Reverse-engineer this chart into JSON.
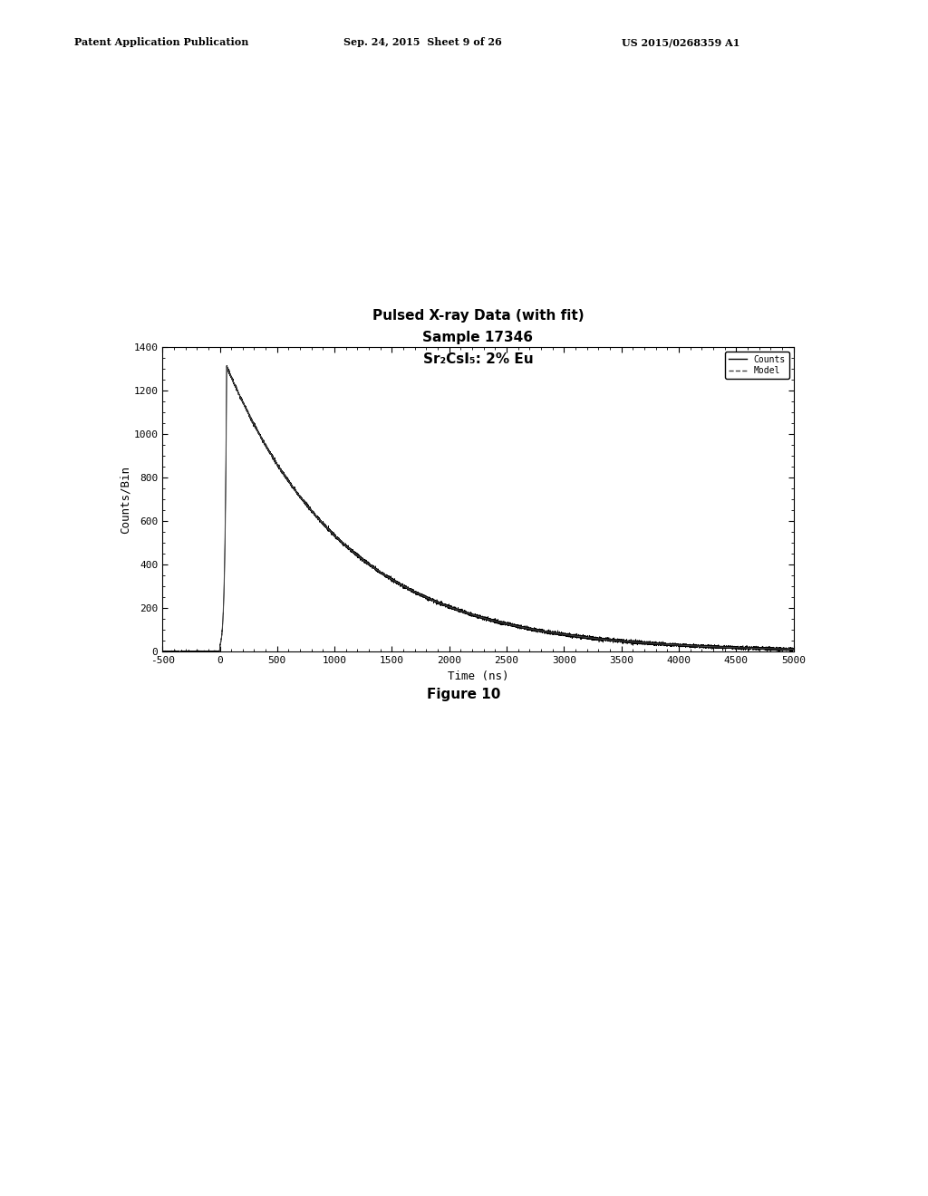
{
  "title_line1": "Pulsed X-ray Data (with fit)",
  "title_line2": "Sample 17346",
  "title_line3": "Sr₂CsI₅: 2% Eu",
  "xlabel": "Time (ns)",
  "ylabel": "Counts/Bin",
  "xlim": [
    -500,
    5000
  ],
  "ylim": [
    0,
    1400
  ],
  "xticks": [
    -500,
    0,
    500,
    1000,
    1500,
    2000,
    2500,
    3000,
    3500,
    4000,
    4500,
    5000
  ],
  "yticks": [
    0,
    200,
    400,
    600,
    800,
    1000,
    1200,
    1400
  ],
  "peak_time": 60,
  "peak_value": 1310,
  "decay_tau": 1050,
  "background_color": "#ffffff",
  "line_color_counts": "#000000",
  "line_color_model": "#444444",
  "legend_labels": [
    "Counts",
    "Model"
  ],
  "figure_label": "Figure 10",
  "header_left": "Patent Application Publication",
  "header_center": "Sep. 24, 2015  Sheet 9 of 26",
  "header_right": "US 2015/0268359 A1",
  "noise_amplitude": 4,
  "title_fontsize": 11,
  "axis_fontsize": 9,
  "tick_fontsize": 8,
  "header_fontsize": 8
}
